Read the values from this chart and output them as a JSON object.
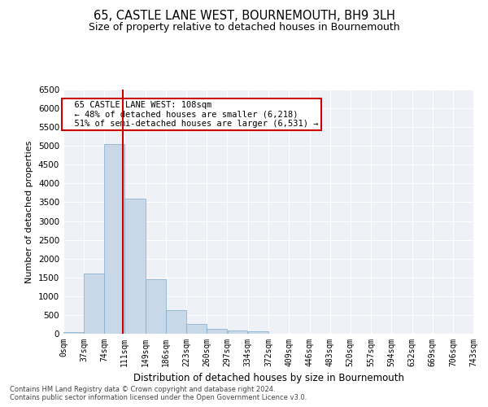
{
  "title": "65, CASTLE LANE WEST, BOURNEMOUTH, BH9 3LH",
  "subtitle": "Size of property relative to detached houses in Bournemouth",
  "xlabel": "Distribution of detached houses by size in Bournemouth",
  "ylabel": "Number of detached properties",
  "footer_line1": "Contains HM Land Registry data © Crown copyright and database right 2024.",
  "footer_line2": "Contains public sector information licensed under the Open Government Licence v3.0.",
  "bar_edges": [
    0,
    37,
    74,
    111,
    149,
    186,
    223,
    260,
    297,
    334,
    372,
    409,
    446,
    483,
    520,
    557,
    594,
    632,
    669,
    706,
    743
  ],
  "bar_heights": [
    50,
    1600,
    5050,
    3600,
    1450,
    620,
    270,
    125,
    80,
    55,
    10,
    5,
    2,
    1,
    0,
    0,
    0,
    0,
    0,
    0
  ],
  "bar_color": "#c8d8e8",
  "bar_edgecolor": "#7aaaca",
  "vline_x": 108,
  "vline_color": "#cc0000",
  "ylim": [
    0,
    6500
  ],
  "yticks": [
    0,
    500,
    1000,
    1500,
    2000,
    2500,
    3000,
    3500,
    4000,
    4500,
    5000,
    5500,
    6000,
    6500
  ],
  "annotation_text": "  65 CASTLE LANE WEST: 108sqm\n  ← 48% of detached houses are smaller (6,218)\n  51% of semi-detached houses are larger (6,531) →",
  "annotation_box_color": "#cc0000",
  "background_color": "#eef2f7",
  "grid_color": "#ffffff",
  "title_fontsize": 10.5,
  "subtitle_fontsize": 9,
  "tick_label_fontsize": 7,
  "ylabel_fontsize": 8,
  "xlabel_fontsize": 8.5,
  "annotation_fontsize": 7.5
}
